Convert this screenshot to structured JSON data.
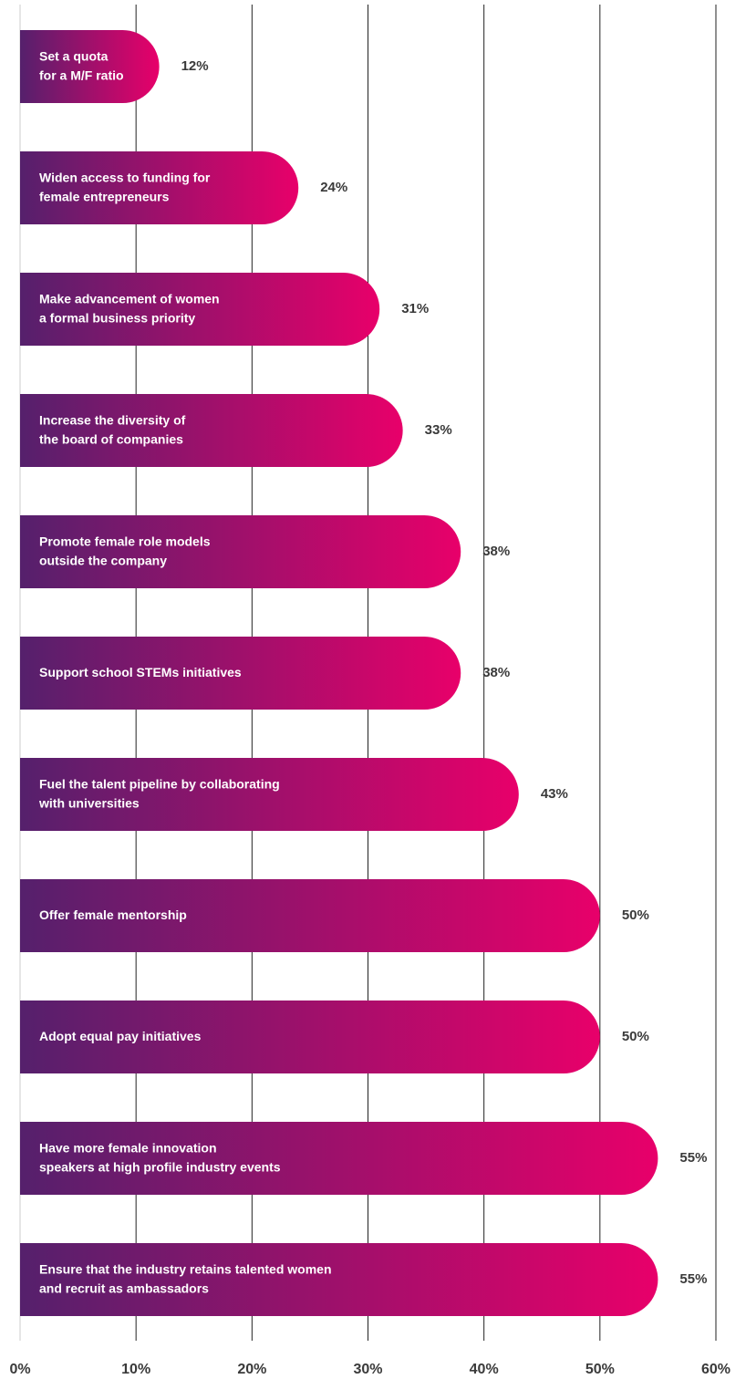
{
  "chart_data": {
    "type": "bar",
    "categories": [
      "Set a quota\nfor a M/F ratio",
      "Widen access to funding for\nfemale entrepreneurs",
      "Make advancement of women\na formal business priority",
      "Increase the diversity of\nthe board of companies",
      "Promote female role models\noutside the company",
      "Support school STEMs initiatives",
      "Fuel the talent pipeline by collaborating\nwith universities",
      "Offer female mentorship",
      "Adopt equal pay initiatives",
      "Have more female innovation\nspeakers at high profile industry events",
      "Ensure that the industry retains talented women\nand recruit as ambassadors"
    ],
    "values": [
      12,
      24,
      31,
      33,
      38,
      38,
      43,
      50,
      50,
      55,
      55
    ],
    "value_labels": [
      "12%",
      "24%",
      "31%",
      "33%",
      "38%",
      "38%",
      "43%",
      "50%",
      "50%",
      "55%",
      "55%"
    ],
    "gradient": [
      "#55206c",
      "#e8006a"
    ],
    "xlim": [
      0,
      60
    ],
    "xticks": [
      {
        "value": 0,
        "label": "0%"
      },
      {
        "value": 10,
        "label": "10%"
      },
      {
        "value": 20,
        "label": "20%"
      },
      {
        "value": 30,
        "label": "30%"
      },
      {
        "value": 40,
        "label": "40%"
      },
      {
        "value": 50,
        "label": "50%"
      },
      {
        "value": 60,
        "label": "60%"
      }
    ],
    "grid": true
  }
}
